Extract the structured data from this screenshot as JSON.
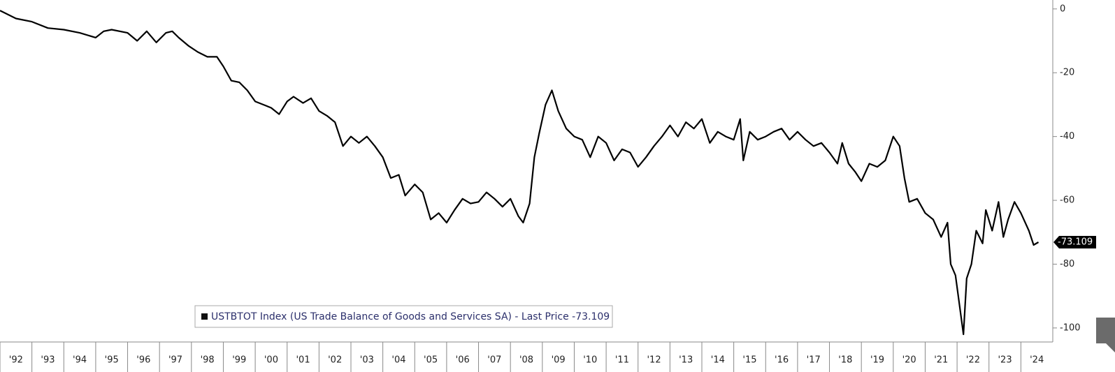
{
  "chart_data": {
    "type": "line",
    "series": [
      {
        "name": "USTBTOT Index (US Trade Balance of Goods and Services SA) - Last Price -73.109",
        "color": "#000000",
        "x": [
          1992.0,
          1992.5,
          1993.0,
          1993.5,
          1994.0,
          1994.5,
          1995.0,
          1995.25,
          1995.5,
          1996.0,
          1996.3,
          1996.6,
          1996.9,
          1997.2,
          1997.4,
          1997.6,
          1997.9,
          1998.2,
          1998.5,
          1998.8,
          1999.0,
          1999.25,
          1999.5,
          1999.75,
          2000.0,
          2000.25,
          2000.5,
          2000.75,
          2001.0,
          2001.2,
          2001.5,
          2001.75,
          2002.0,
          2002.25,
          2002.5,
          2002.75,
          2003.0,
          2003.25,
          2003.5,
          2003.75,
          2004.0,
          2004.25,
          2004.5,
          2004.7,
          2005.0,
          2005.25,
          2005.5,
          2005.75,
          2006.0,
          2006.25,
          2006.5,
          2006.75,
          2007.0,
          2007.25,
          2007.5,
          2007.75,
          2008.0,
          2008.25,
          2008.4,
          2008.6,
          2008.75,
          2008.9,
          2009.1,
          2009.3,
          2009.5,
          2009.75,
          2010.0,
          2010.25,
          2010.5,
          2010.75,
          2011.0,
          2011.25,
          2011.5,
          2011.75,
          2012.0,
          2012.25,
          2012.5,
          2012.75,
          2013.0,
          2013.25,
          2013.5,
          2013.75,
          2014.0,
          2014.25,
          2014.5,
          2014.75,
          2015.0,
          2015.2,
          2015.3,
          2015.5,
          2015.75,
          2016.0,
          2016.25,
          2016.5,
          2016.75,
          2017.0,
          2017.25,
          2017.5,
          2017.75,
          2018.0,
          2018.25,
          2018.4,
          2018.6,
          2018.8,
          2019.0,
          2019.25,
          2019.5,
          2019.75,
          2020.0,
          2020.2,
          2020.35,
          2020.5,
          2020.75,
          2021.0,
          2021.25,
          2021.5,
          2021.7,
          2021.8,
          2021.95,
          2022.2,
          2022.3,
          2022.45,
          2022.6,
          2022.8,
          2022.9,
          2023.1,
          2023.3,
          2023.45,
          2023.6,
          2023.8,
          2024.0,
          2024.25,
          2024.4,
          2024.55
        ],
        "values": [
          -0.5,
          -3,
          -4,
          -6,
          -6.5,
          -7.5,
          -9,
          -7,
          -6.5,
          -7.5,
          -10,
          -7,
          -10.5,
          -7.5,
          -7,
          -9,
          -11.5,
          -13.5,
          -15,
          -15,
          -18,
          -22.5,
          -23,
          -25.5,
          -29,
          -30,
          -31,
          -33,
          -29,
          -27.5,
          -29.5,
          -28,
          -32,
          -33.5,
          -35.5,
          -43,
          -40,
          -42,
          -40,
          -43,
          -46.5,
          -53,
          -52,
          -58.5,
          -55,
          -57.5,
          -66,
          -64,
          -67,
          -63,
          -59.5,
          -61,
          -60.5,
          -57.5,
          -59.5,
          -62,
          -59.5,
          -65,
          -67,
          -61,
          -46.5,
          -39,
          -30,
          -25.5,
          -32,
          -37.5,
          -40,
          -41,
          -46.5,
          -40,
          -42,
          -47.5,
          -44,
          -45,
          -49.5,
          -46.5,
          -43,
          -40,
          -36.5,
          -40,
          -35.5,
          -37.5,
          -34.5,
          -42,
          -38.5,
          -40,
          -41,
          -34.5,
          -47.5,
          -38.5,
          -41,
          -40,
          -38.5,
          -37.5,
          -41,
          -38.5,
          -41,
          -43,
          -42,
          -45,
          -48.5,
          -42,
          -48.5,
          -51,
          -54,
          -48.5,
          -49.5,
          -47.5,
          -40,
          -43,
          -53,
          -60.5,
          -59.5,
          -64,
          -66,
          -71.5,
          -67,
          -80,
          -83.5,
          -102,
          -84.5,
          -80,
          -69.5,
          -73.5,
          -63,
          -69.5,
          -60.5,
          -71.5,
          -66,
          -60.5,
          -64,
          -69.5,
          -74,
          -73.109
        ]
      }
    ],
    "xlim": [
      1992,
      2025
    ],
    "xticks": [
      {
        "value": 1992,
        "label": "'92"
      },
      {
        "value": 1993,
        "label": "'93"
      },
      {
        "value": 1994,
        "label": "'94"
      },
      {
        "value": 1995,
        "label": "'95"
      },
      {
        "value": 1996,
        "label": "'96"
      },
      {
        "value": 1997,
        "label": "'97"
      },
      {
        "value": 1998,
        "label": "'98"
      },
      {
        "value": 1999,
        "label": "'99"
      },
      {
        "value": 2000,
        "label": "'00"
      },
      {
        "value": 2001,
        "label": "'01"
      },
      {
        "value": 2002,
        "label": "'02"
      },
      {
        "value": 2003,
        "label": "'03"
      },
      {
        "value": 2004,
        "label": "'04"
      },
      {
        "value": 2005,
        "label": "'05"
      },
      {
        "value": 2006,
        "label": "'06"
      },
      {
        "value": 2007,
        "label": "'07"
      },
      {
        "value": 2008,
        "label": "'08"
      },
      {
        "value": 2009,
        "label": "'09"
      },
      {
        "value": 2010,
        "label": "'10"
      },
      {
        "value": 2011,
        "label": "'11"
      },
      {
        "value": 2012,
        "label": "'12"
      },
      {
        "value": 2013,
        "label": "'13"
      },
      {
        "value": 2014,
        "label": "'14"
      },
      {
        "value": 2015,
        "label": "'15"
      },
      {
        "value": 2016,
        "label": "'16"
      },
      {
        "value": 2017,
        "label": "'17"
      },
      {
        "value": 2018,
        "label": "'18"
      },
      {
        "value": 2019,
        "label": "'19"
      },
      {
        "value": 2020,
        "label": "'20"
      },
      {
        "value": 2021,
        "label": "'21"
      },
      {
        "value": 2022,
        "label": "'22"
      },
      {
        "value": 2023,
        "label": "'23"
      },
      {
        "value": 2024,
        "label": "'24"
      }
    ],
    "ylim": [
      -104.4,
      2.8
    ],
    "yticks": [
      0,
      -20,
      -40,
      -60,
      -80,
      -100
    ],
    "y_axis_side": "right"
  }
}
